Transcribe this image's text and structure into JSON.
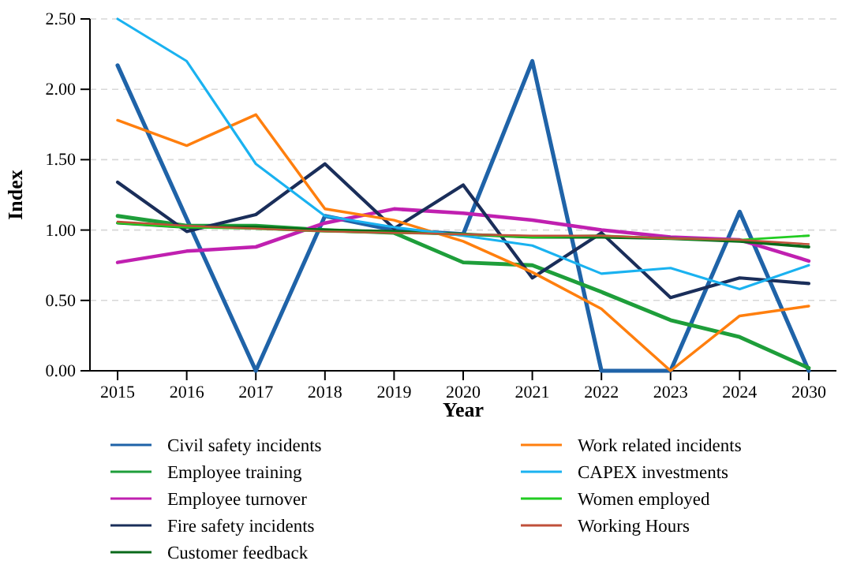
{
  "chart_data": {
    "type": "line",
    "xlabel": "Year",
    "ylabel": "Index",
    "categories": [
      "2015",
      "2016",
      "2017",
      "2018",
      "2019",
      "2020",
      "2021",
      "2022",
      "2023",
      "2024",
      "2030"
    ],
    "ylim": [
      0,
      2.5
    ],
    "yticks": [
      {
        "value": 0,
        "label": "0.00"
      },
      {
        "value": 0.5,
        "label": "0.50"
      },
      {
        "value": 1,
        "label": "1.00"
      },
      {
        "value": 1.5,
        "label": "1.50"
      },
      {
        "value": 2,
        "label": "2.00"
      },
      {
        "value": 2.5,
        "label": "2.50"
      }
    ],
    "grid": "y",
    "legend": "bottom",
    "series": [
      {
        "name": "Civil safety incidents",
        "color": "#1f63a8",
        "values": [
          2.17,
          1.08,
          0,
          1.1,
          1.0,
          0.97,
          2.2,
          0,
          0,
          1.13,
          0
        ]
      },
      {
        "name": "Employee training",
        "color": "#1e9e3a",
        "values": [
          1.1,
          1.03,
          1.03,
          1.0,
          0.98,
          0.77,
          0.75,
          0.56,
          0.36,
          0.24,
          0.02
        ]
      },
      {
        "name": "Employee turnover",
        "color": "#c020b0",
        "values": [
          0.77,
          0.85,
          0.88,
          1.05,
          1.15,
          1.12,
          1.07,
          1.0,
          0.95,
          0.93,
          0.78
        ]
      },
      {
        "name": "Fire safety incidents",
        "color": "#1a2e5a",
        "values": [
          1.34,
          0.99,
          1.11,
          1.47,
          1.01,
          1.32,
          0.66,
          0.98,
          0.52,
          0.66,
          0.62
        ]
      },
      {
        "name": "Customer feedback",
        "color": "#0a6a1a",
        "values": [
          1.05,
          1.02,
          1.02,
          1.0,
          0.99,
          0.97,
          0.95,
          0.95,
          0.94,
          0.92,
          0.88
        ]
      },
      {
        "name": "Work related incidents",
        "color": "#ff7f0e",
        "values": [
          1.78,
          1.6,
          1.82,
          1.15,
          1.07,
          0.92,
          0.7,
          0.44,
          0,
          0.39,
          0.46
        ]
      },
      {
        "name": "CAPEX investments",
        "color": "#1ab2f0",
        "values": [
          2.5,
          2.2,
          1.47,
          1.1,
          1.02,
          0.96,
          0.89,
          0.69,
          0.73,
          0.58,
          0.75
        ]
      },
      {
        "name": "Women employed",
        "color": "#22cc22",
        "values": [
          1.05,
          1.02,
          1.01,
          0.99,
          0.98,
          0.97,
          0.95,
          0.96,
          0.94,
          0.93,
          0.96
        ]
      },
      {
        "name": "Working Hours",
        "color": "#c0503a",
        "values": [
          1.06,
          1.03,
          1.01,
          0.99,
          0.98,
          0.97,
          0.96,
          0.96,
          0.94,
          0.93,
          0.9
        ]
      }
    ]
  }
}
